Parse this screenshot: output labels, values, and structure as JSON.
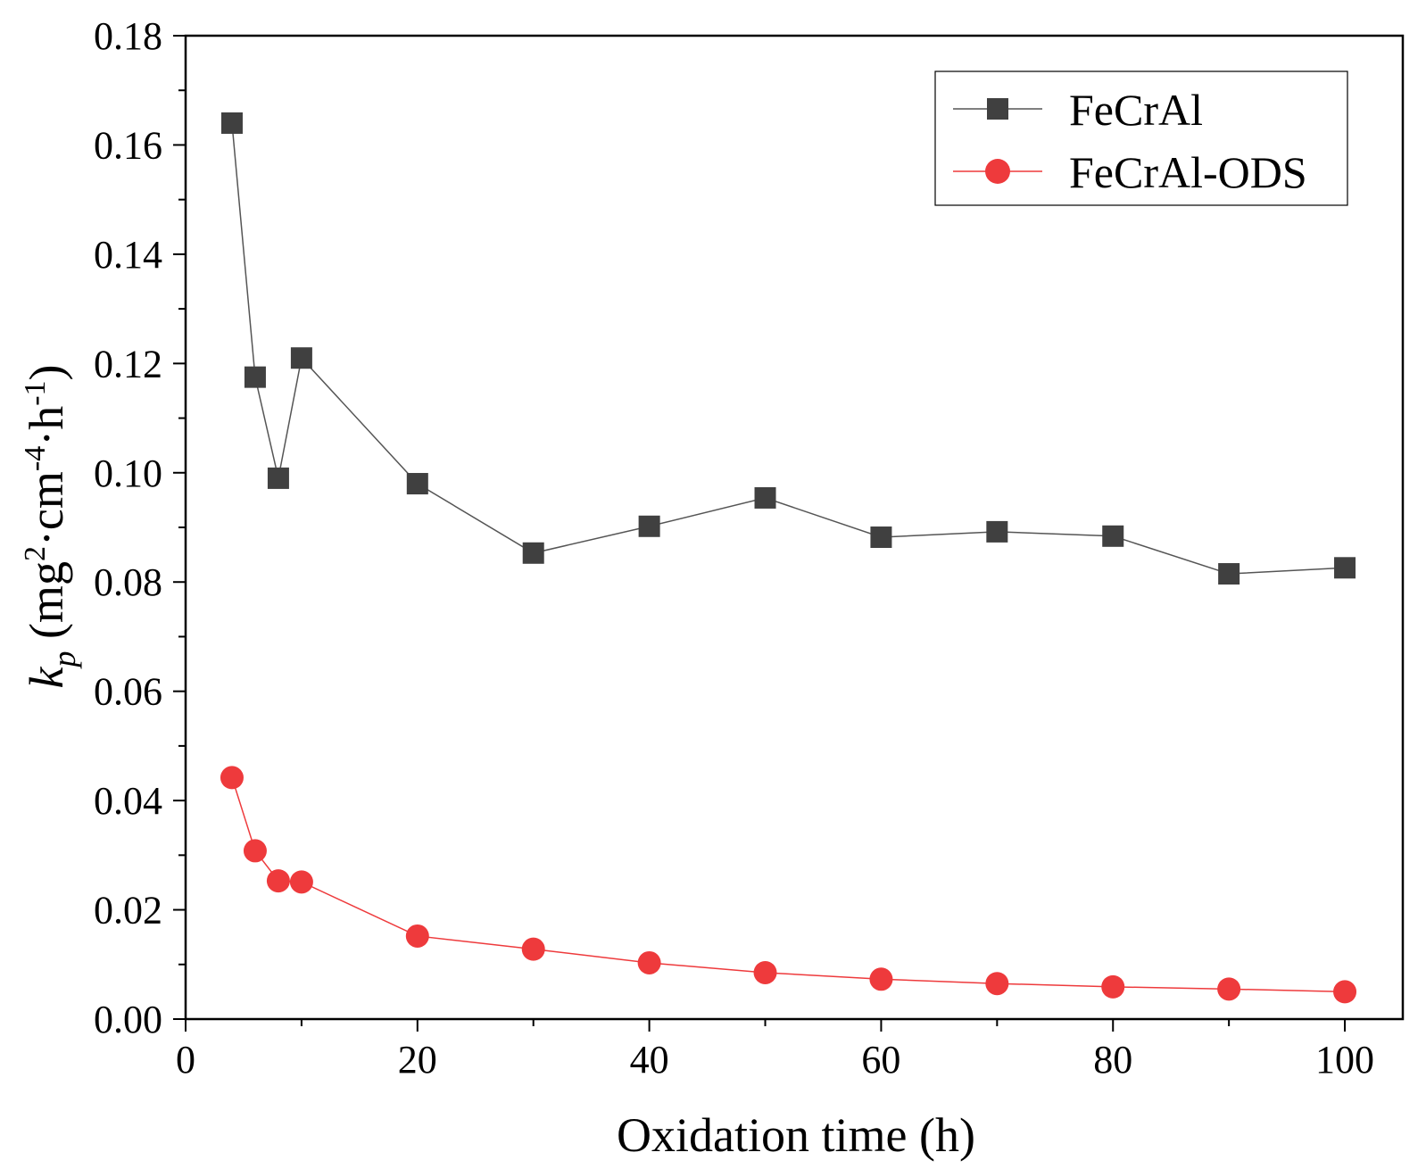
{
  "chart_data": {
    "type": "line",
    "title": "",
    "xlabel": "Oxidation time (h)",
    "ylabel": {
      "symbol": "k",
      "subscript": "p",
      "unit_open": " (mg",
      "sup1": "2",
      "unit_mid": "·cm",
      "sup2": "-4",
      "unit_mid2": "·h",
      "sup3": "-1",
      "unit_close": ")"
    },
    "xlim": [
      0,
      105
    ],
    "ylim": [
      0,
      0.18
    ],
    "xticks": [
      0,
      20,
      40,
      60,
      80,
      100
    ],
    "xtick_labels": [
      "0",
      "20",
      "40",
      "60",
      "80",
      "100"
    ],
    "yticks": [
      0,
      0.02,
      0.04,
      0.06,
      0.08,
      0.1,
      0.12,
      0.14,
      0.16,
      0.18
    ],
    "ytick_labels": [
      "0.00",
      "0.02",
      "0.04",
      "0.06",
      "0.08",
      "0.10",
      "0.12",
      "0.14",
      "0.16",
      "0.18"
    ],
    "legend_position": "top-right",
    "series": [
      {
        "name": "FeCrAl",
        "marker": "square",
        "color": "#404040",
        "line_color": "#555555",
        "x": [
          4,
          6,
          8,
          10,
          20,
          30,
          40,
          50,
          60,
          70,
          80,
          90,
          100
        ],
        "y": [
          0.164,
          0.1175,
          0.099,
          0.121,
          0.098,
          0.0853,
          0.0902,
          0.0954,
          0.0882,
          0.0892,
          0.0884,
          0.0815,
          0.0826
        ]
      },
      {
        "name": "FeCrAl-ODS",
        "marker": "circle",
        "color": "#ee3a3c",
        "line_color": "#ee3a3c",
        "x": [
          4,
          6,
          8,
          10,
          20,
          30,
          40,
          50,
          60,
          70,
          80,
          90,
          100
        ],
        "y": [
          0.0442,
          0.0308,
          0.0253,
          0.0251,
          0.0152,
          0.0128,
          0.0103,
          0.0085,
          0.0073,
          0.0065,
          0.0059,
          0.0055,
          0.005
        ]
      }
    ]
  }
}
